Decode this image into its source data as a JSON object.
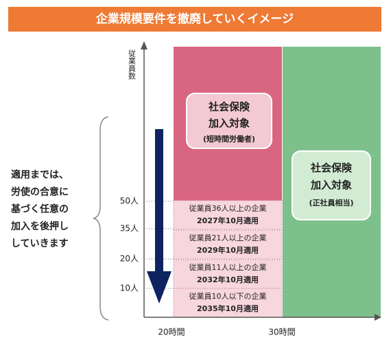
{
  "header": {
    "title": "企業規模要件を撤廃していくイメージ"
  },
  "axis": {
    "y_label": "従業員数",
    "y_ticks": [
      "50人",
      "35人",
      "20人",
      "10人"
    ],
    "x_ticks": [
      "20時間",
      "30時間"
    ]
  },
  "short_time_box": {
    "lines": [
      "社会保険",
      "加入対象",
      "(短時間労働者)"
    ]
  },
  "full_time_box": {
    "lines": [
      "社会保険",
      "加入対象",
      "(正社員相当)"
    ]
  },
  "rows": [
    {
      "company": "従業員36人以上の企業",
      "date": "2027年10月適用"
    },
    {
      "company": "従業員21人以上の企業",
      "date": "2029年10月適用"
    },
    {
      "company": "従業員11人以上の企業",
      "date": "2032年10月適用"
    },
    {
      "company": "従業員10人以下の企業",
      "date": "2035年10月適用"
    }
  ],
  "note": {
    "lines": [
      "適用までは、",
      "労使の合意に",
      "基づく任意の",
      "加入を後押し",
      "していきます"
    ]
  }
}
